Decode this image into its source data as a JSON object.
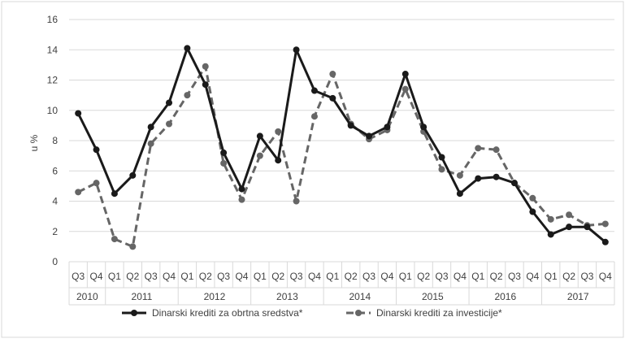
{
  "chart_data": {
    "type": "line",
    "title": "",
    "xlabel": "",
    "ylabel": "u %",
    "ylim": [
      0,
      16
    ],
    "yticks": [
      0,
      2,
      4,
      6,
      8,
      10,
      12,
      14,
      16
    ],
    "grid": "horizontal",
    "legend_position": "bottom",
    "quarters": [
      "Q3",
      "Q4",
      "Q1",
      "Q2",
      "Q3",
      "Q4",
      "Q1",
      "Q2",
      "Q3",
      "Q4",
      "Q1",
      "Q2",
      "Q3",
      "Q4",
      "Q1",
      "Q2",
      "Q3",
      "Q4",
      "Q1",
      "Q2",
      "Q3",
      "Q4",
      "Q1",
      "Q2",
      "Q3",
      "Q4",
      "Q1",
      "Q2",
      "Q3",
      "Q4"
    ],
    "years": [
      {
        "label": "2010",
        "count": 2
      },
      {
        "label": "2011",
        "count": 4
      },
      {
        "label": "2012",
        "count": 4
      },
      {
        "label": "2013",
        "count": 4
      },
      {
        "label": "2014",
        "count": 4
      },
      {
        "label": "2015",
        "count": 4
      },
      {
        "label": "2016",
        "count": 4
      },
      {
        "label": "2017",
        "count": 4
      }
    ],
    "series": [
      {
        "name": "Dinarski krediti za obrtna sredstva*",
        "color": "#1a1a1a",
        "style": "solid",
        "values": [
          9.8,
          7.4,
          4.5,
          5.7,
          8.9,
          10.5,
          14.1,
          11.7,
          7.2,
          4.8,
          8.3,
          6.7,
          14.0,
          11.3,
          10.8,
          9.0,
          8.3,
          8.9,
          12.4,
          8.9,
          6.9,
          4.5,
          5.5,
          5.6,
          5.2,
          3.3,
          1.8,
          2.3,
          2.3,
          1.3
        ]
      },
      {
        "name": "Dinarski krediti za investicije*",
        "color": "#666666",
        "style": "dashed",
        "values": [
          4.6,
          5.2,
          1.5,
          1.0,
          7.8,
          9.1,
          11.0,
          12.9,
          6.5,
          4.1,
          7.0,
          8.6,
          4.0,
          9.6,
          12.4,
          9.1,
          8.1,
          8.7,
          11.4,
          8.6,
          6.1,
          5.7,
          7.5,
          7.4,
          5.2,
          4.2,
          2.8,
          3.1,
          2.4,
          2.5
        ]
      }
    ]
  }
}
